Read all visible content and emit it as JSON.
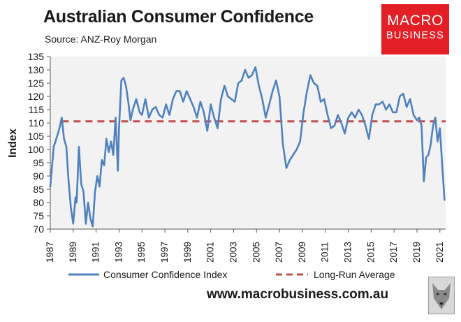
{
  "header": {
    "title": "Australian Consumer Confidence",
    "source": "Source: ANZ-Roy Morgan"
  },
  "logo": {
    "line1": "MACRO",
    "line2": "BUSINESS"
  },
  "footer": {
    "website": "www.macrobusiness.com.au"
  },
  "colors": {
    "series": "#4f81bd",
    "average": "#c0504d",
    "plot_bg": "#f2f2f2",
    "brand": "#e31e24"
  },
  "chart_data": {
    "type": "line",
    "title": "Australian Consumer Confidence",
    "xlabel": "",
    "ylabel": "Index",
    "xlim": [
      1987,
      2021.5
    ],
    "ylim": [
      70,
      135
    ],
    "yticks": [
      70,
      75,
      80,
      85,
      90,
      95,
      100,
      105,
      110,
      115,
      120,
      125,
      130,
      135
    ],
    "xticks": [
      "1987",
      "1989",
      "1991",
      "1993",
      "1995",
      "1997",
      "1999",
      "2001",
      "2003",
      "2005",
      "2007",
      "2009",
      "2011",
      "2013",
      "2015",
      "2017",
      "2019",
      "2021"
    ],
    "grid": false,
    "legend_position": "bottom",
    "series": [
      {
        "name": "Consumer Confidence Index",
        "style": "solid",
        "x": [
          1987.0,
          1987.3,
          1987.6,
          1987.8,
          1988.0,
          1988.2,
          1988.4,
          1988.6,
          1988.8,
          1989.0,
          1989.2,
          1989.3,
          1989.5,
          1989.7,
          1989.9,
          1990.1,
          1990.3,
          1990.5,
          1990.7,
          1990.9,
          1991.1,
          1991.3,
          1991.5,
          1991.7,
          1991.9,
          1992.1,
          1992.3,
          1992.5,
          1992.7,
          1992.9,
          1993.0,
          1993.2,
          1993.4,
          1993.6,
          1993.8,
          1994.0,
          1994.2,
          1994.5,
          1994.8,
          1995.0,
          1995.3,
          1995.6,
          1995.9,
          1996.2,
          1996.5,
          1996.8,
          1997.1,
          1997.4,
          1997.7,
          1998.0,
          1998.3,
          1998.6,
          1998.9,
          1999.2,
          1999.5,
          1999.8,
          2000.1,
          2000.4,
          2000.7,
          2001.0,
          2001.3,
          2001.6,
          2001.9,
          2002.2,
          2002.5,
          2002.8,
          2003.1,
          2003.4,
          2003.7,
          2004.0,
          2004.3,
          2004.6,
          2004.9,
          2005.2,
          2005.5,
          2005.8,
          2006.1,
          2006.4,
          2006.7,
          2007.0,
          2007.3,
          2007.6,
          2007.9,
          2008.2,
          2008.5,
          2008.8,
          2009.1,
          2009.4,
          2009.7,
          2010.0,
          2010.3,
          2010.6,
          2010.9,
          2011.2,
          2011.5,
          2011.8,
          2012.1,
          2012.4,
          2012.7,
          2013.0,
          2013.3,
          2013.6,
          2013.9,
          2014.2,
          2014.5,
          2014.8,
          2015.1,
          2015.4,
          2015.7,
          2016.0,
          2016.3,
          2016.6,
          2016.9,
          2017.2,
          2017.5,
          2017.8,
          2018.1,
          2018.4,
          2018.7,
          2019.0,
          2019.2,
          2019.4,
          2019.6,
          2019.8,
          2020.0,
          2020.2,
          2020.4,
          2020.6,
          2020.8,
          2021.0,
          2021.2,
          2021.4
        ],
        "y": [
          86,
          101,
          105,
          108,
          112,
          104,
          101,
          88,
          78,
          72,
          82,
          80,
          101,
          87,
          84,
          72,
          80,
          74,
          71,
          84,
          90,
          86,
          96,
          94,
          104,
          99,
          103,
          98,
          112,
          92,
          108,
          126,
          127,
          124,
          118,
          111,
          115,
          119,
          114,
          113,
          119,
          112,
          115,
          116,
          113,
          112,
          117,
          113,
          119,
          122,
          122,
          118,
          122,
          119,
          116,
          112,
          118,
          114,
          107,
          117,
          112,
          108,
          119,
          124,
          120,
          119,
          118,
          125,
          126,
          130,
          127,
          128,
          131,
          124,
          119,
          112,
          117,
          122,
          126,
          120,
          102,
          93,
          96,
          98,
          100,
          103,
          114,
          122,
          128,
          125,
          124,
          118,
          119,
          113,
          108,
          109,
          113,
          110,
          106,
          112,
          114,
          112,
          115,
          113,
          109,
          104,
          113,
          117,
          117,
          118,
          115,
          117,
          114,
          114,
          120,
          121,
          116,
          119,
          113,
          111,
          112,
          109,
          88,
          97,
          98,
          102,
          109,
          112,
          103,
          108,
          94,
          81
        ],
        "ymin": 70.5,
        "ymax": 133.5
      },
      {
        "name": "Long-Run Average",
        "style": "dashed",
        "value": 110.6,
        "x_start": 1988.0,
        "x_end": 2021.5
      }
    ]
  }
}
